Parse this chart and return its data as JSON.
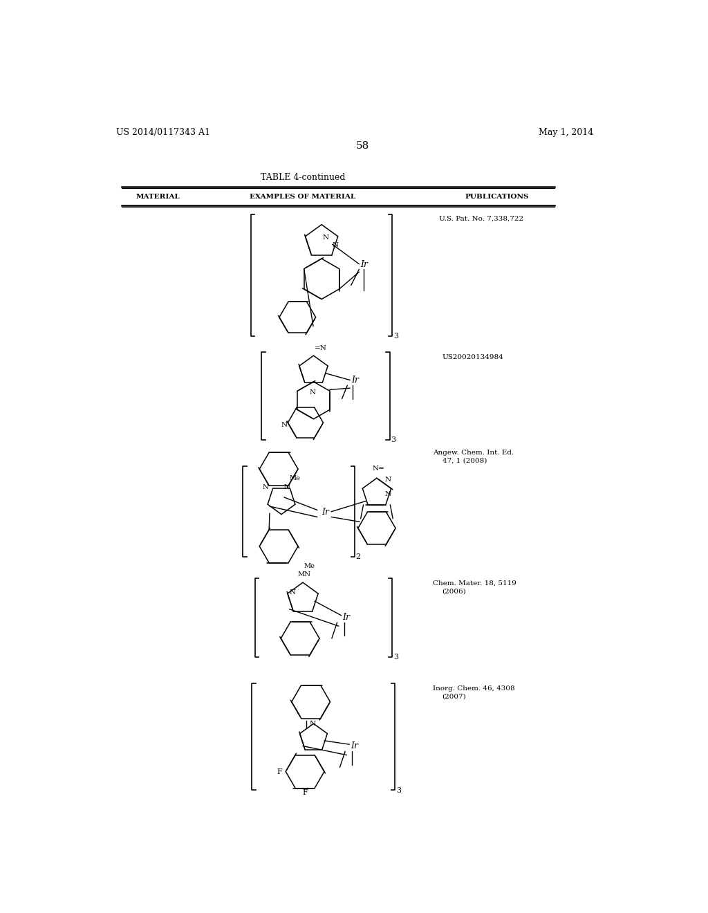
{
  "page_number": "58",
  "patent_number": "US 2014/0117343 A1",
  "date": "May 1, 2014",
  "table_title": "TABLE 4-continued",
  "col1": "MATERIAL",
  "col2": "EXAMPLES OF MATERIAL",
  "col3": "PUBLICATIONS",
  "pub1": "U.S. Pat. No. 7,338,722",
  "pub2": "US20020134984",
  "pub3a": "Angew. Chem. Int. Ed.",
  "pub3b": "47, 1 (2008)",
  "pub4a": "Chem. Mater. 18, 5119",
  "pub4b": "(2006)",
  "pub5a": "Inorg. Chem. 46, 4308",
  "pub5b": "(2007)",
  "bg_color": "#ffffff",
  "text_color": "#000000"
}
